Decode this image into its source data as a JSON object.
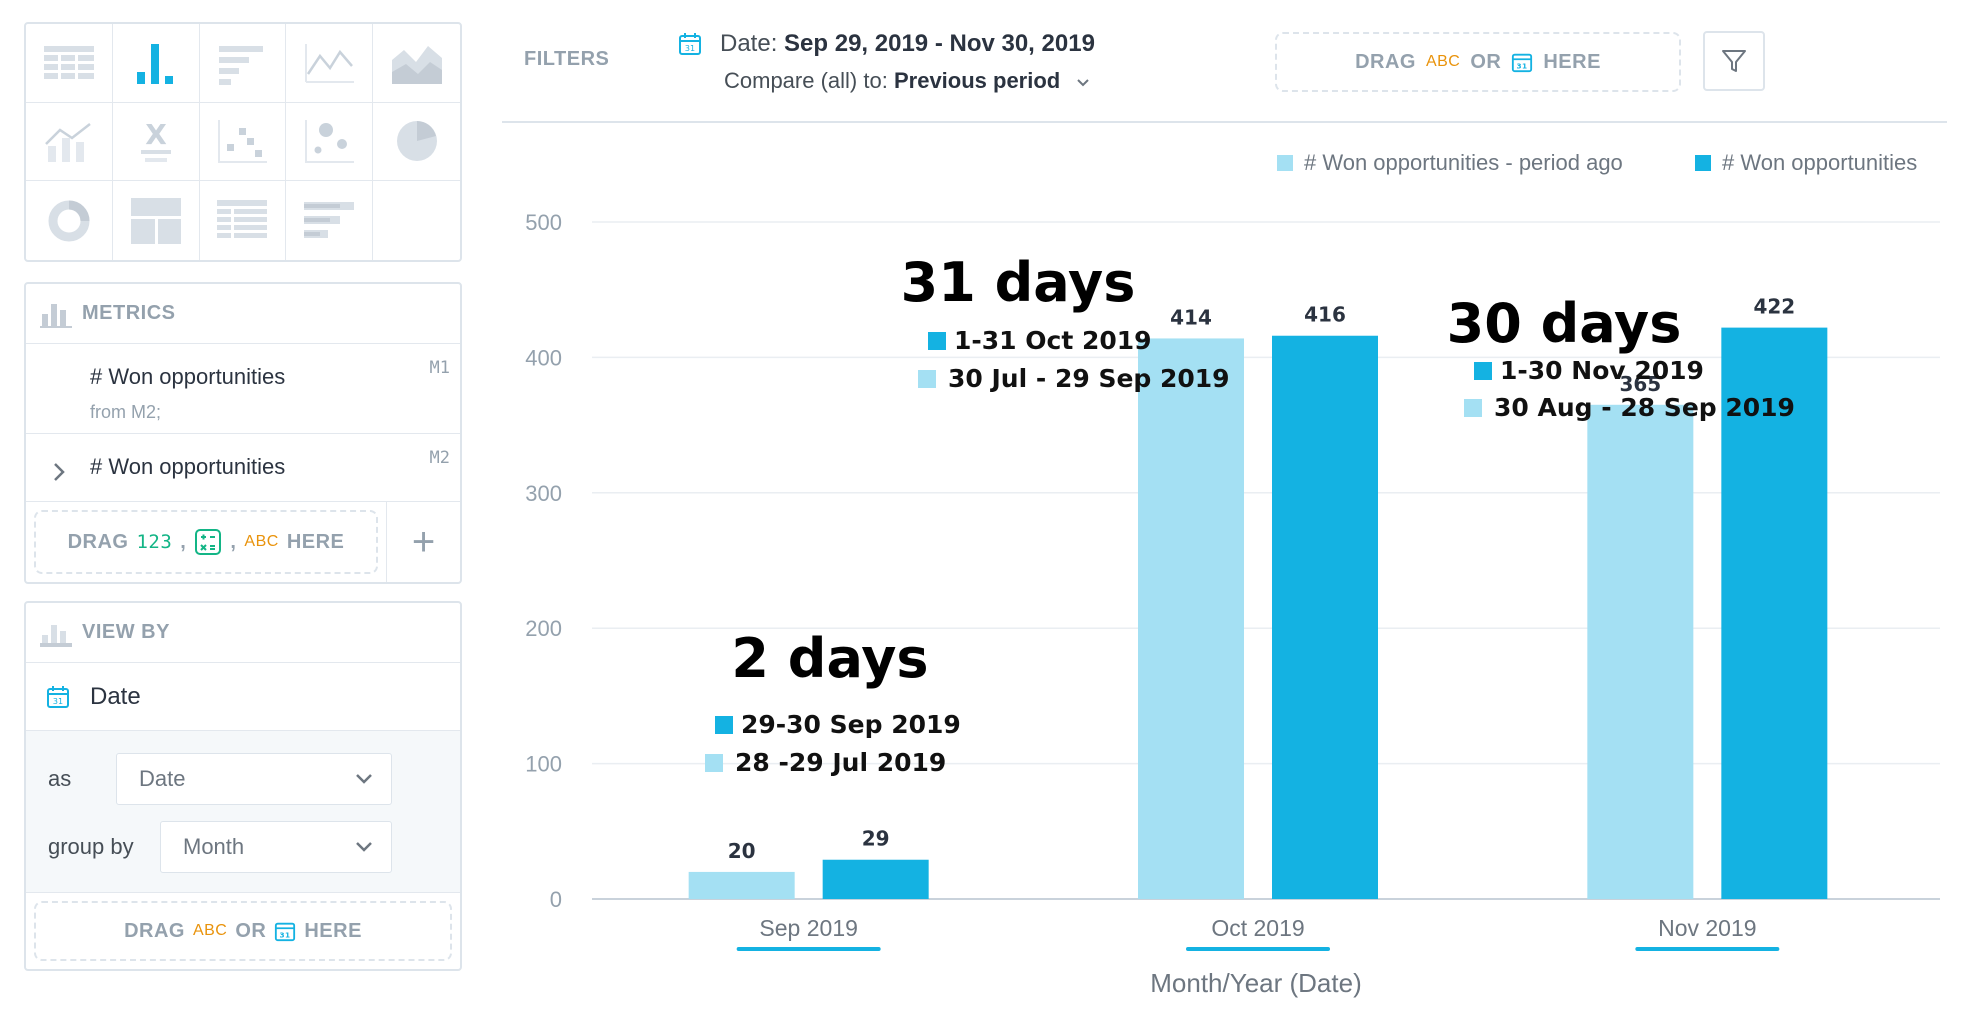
{
  "sidebar": {
    "metrics": {
      "header": "METRICS",
      "items": [
        {
          "name": "# Won opportunities",
          "subtitle": "from M2;",
          "id": "M1"
        },
        {
          "name": "# Won opportunities",
          "id": "M2"
        }
      ],
      "drop": {
        "drag": "DRAG",
        "num": "123",
        "sep1": ",",
        "sep2": ",",
        "abc": "ABC",
        "here": "HERE"
      },
      "add_label": "+"
    },
    "view_by": {
      "header": "VIEW BY",
      "attribute": "Date",
      "as_label": "as",
      "as_value": "Date",
      "group_label": "group by",
      "group_value": "Month",
      "drop": {
        "drag": "DRAG",
        "abc": "ABC",
        "or": "OR",
        "here": "HERE"
      }
    }
  },
  "filters": {
    "label": "FILTERS",
    "date_prefix": "Date:",
    "date_value": "Sep 29, 2019 - Nov 30, 2019",
    "compare_prefix": "Compare (all) to:",
    "compare_value": "Previous period",
    "drop": {
      "drag": "DRAG",
      "abc": "ABC",
      "or": "OR",
      "here": "HERE"
    }
  },
  "colors": {
    "current": "#14b2e2",
    "previous": "#a4e0f3",
    "underline": "#14b2e2"
  },
  "chart_data": {
    "type": "bar",
    "categories": [
      "Sep 2019",
      "Oct 2019",
      "Nov 2019"
    ],
    "series": [
      {
        "name": "# Won opportunities - period ago",
        "values": [
          20,
          414,
          365
        ]
      },
      {
        "name": "# Won opportunities",
        "values": [
          29,
          416,
          422
        ]
      }
    ],
    "xlabel": "Month/Year (Date)",
    "ylabel": "",
    "ylim": [
      0,
      500
    ],
    "yticks": [
      0,
      100,
      200,
      300,
      400,
      500
    ],
    "legend": "top-right",
    "annotations": [
      {
        "title": "2 days",
        "current": "29-30 Sep 2019",
        "previous": "28 -29 Jul 2019"
      },
      {
        "title": "31 days",
        "current": "1-31 Oct 2019",
        "previous": "30 Jul - 29 Sep 2019"
      },
      {
        "title": "30 days",
        "current": "1-30 Nov 2019",
        "previous": "30 Aug - 28 Sep 2019"
      }
    ]
  }
}
